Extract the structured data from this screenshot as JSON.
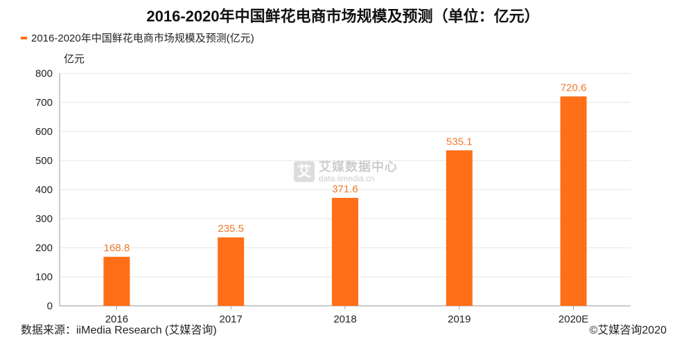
{
  "chart_data": {
    "type": "bar",
    "title": "2016-2020年中国鲜花电商市场规模及预测（单位：亿元）",
    "categories": [
      "2016",
      "2017",
      "2018",
      "2019",
      "2020E"
    ],
    "series": [
      {
        "name": "2016-2020年中国鲜花电商市场规模及预测(亿元)",
        "values": [
          168.8,
          235.5,
          371.6,
          535.1,
          720.6
        ]
      }
    ],
    "ylabel": "亿元",
    "xlabel": "",
    "ylim": [
      0,
      800
    ],
    "yticks": [
      0,
      100,
      200,
      300,
      400,
      500,
      600,
      700,
      800
    ],
    "grid": true,
    "legend_position": "top-left",
    "bar_color": "#ff6f17",
    "data_label_color": "#f07a2a"
  },
  "watermark": {
    "name": "艾媒数据中心",
    "url": "data.iimedia.cn",
    "logo_glyph": "艾"
  },
  "footer": {
    "source": "数据来源：iiMedia Research (艾媒咨询)",
    "copyright": "©艾媒咨询2020"
  }
}
